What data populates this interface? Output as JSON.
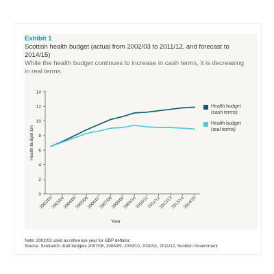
{
  "header": {
    "exhibit": "Exhibit 1",
    "title": "Scottish health budget (actual from 2002/03 to 2011/12, and forecast to 2014/15)",
    "subtitle": "While the health budget continues to increase in cash terms, it is decreasing in real terms."
  },
  "chart_data": {
    "type": "line",
    "title": "",
    "xlabel": "Year",
    "ylabel": "Health budget £m",
    "ylim": [
      0,
      14
    ],
    "yticks": [
      0,
      2,
      4,
      6,
      8,
      10,
      12,
      14
    ],
    "grid": false,
    "legend_position": "right",
    "categories": [
      "2002/03",
      "2003/04",
      "2004/05",
      "2005/06",
      "2006/07",
      "2007/08",
      "2008/09",
      "2009/10",
      "2010/11",
      "2011/12",
      "2012/13",
      "2013/14",
      "2014/15"
    ],
    "series": [
      {
        "name": "Health budget (cash terms)",
        "legend_lines": [
          "Health budget",
          "(cash terms)"
        ],
        "color": "#0d5c6e",
        "values": [
          6.5,
          7.2,
          8.0,
          8.8,
          9.5,
          10.2,
          10.6,
          11.1,
          11.2,
          11.4,
          11.6,
          11.8,
          11.9
        ]
      },
      {
        "name": "Health budget (real terms)",
        "legend_lines": [
          "Health budget",
          "(real terms)"
        ],
        "color": "#4fc8dc",
        "values": [
          6.5,
          7.1,
          7.7,
          8.3,
          8.6,
          9.0,
          9.1,
          9.4,
          9.2,
          9.1,
          9.1,
          9.0,
          8.9
        ]
      }
    ]
  },
  "footnotes": {
    "note": "Note: 2002/03 used as reference year for GDP deflator.",
    "source": "Source: Scotland's draft budgets 2007/08, 2008/09, 2009/10, 2010/11, 2011/12, Scottish Government"
  },
  "colors": {
    "accent": "#1a8fb8",
    "cash_line": "#0d5c6e",
    "real_line": "#4fc8dc",
    "axis": "#666666"
  }
}
